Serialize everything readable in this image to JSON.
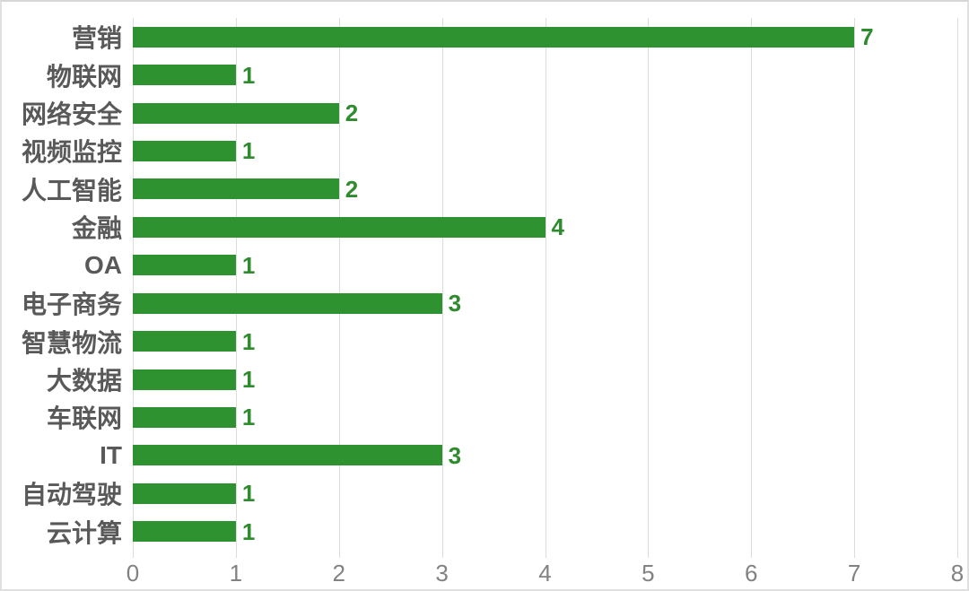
{
  "chart_data": {
    "type": "bar",
    "orientation": "horizontal",
    "title": "",
    "xlabel": "",
    "ylabel": "",
    "categories": [
      "营销",
      "物联网",
      "网络安全",
      "视频监控",
      "人工智能",
      "金融",
      "OA",
      "电子商务",
      "智慧物流",
      "大数据",
      "车联网",
      "IT",
      "自动驾驶",
      "云计算"
    ],
    "values": [
      7,
      1,
      2,
      1,
      2,
      4,
      1,
      3,
      1,
      1,
      1,
      3,
      1,
      1
    ],
    "xlim": [
      0,
      8
    ],
    "x_ticks": [
      "0",
      "1",
      "2",
      "3",
      "4",
      "5",
      "6",
      "7",
      "8"
    ],
    "grid": "vertical-major",
    "legend": "none",
    "data_labels_shown": true,
    "colors": {
      "bar": "#2e9230",
      "value_label": "#2e8b2e",
      "category_label": "#595959",
      "tick_label": "#828282",
      "gridline": "#dcdcdc",
      "background": "#ffffff",
      "border": "#e0e0e0"
    }
  }
}
